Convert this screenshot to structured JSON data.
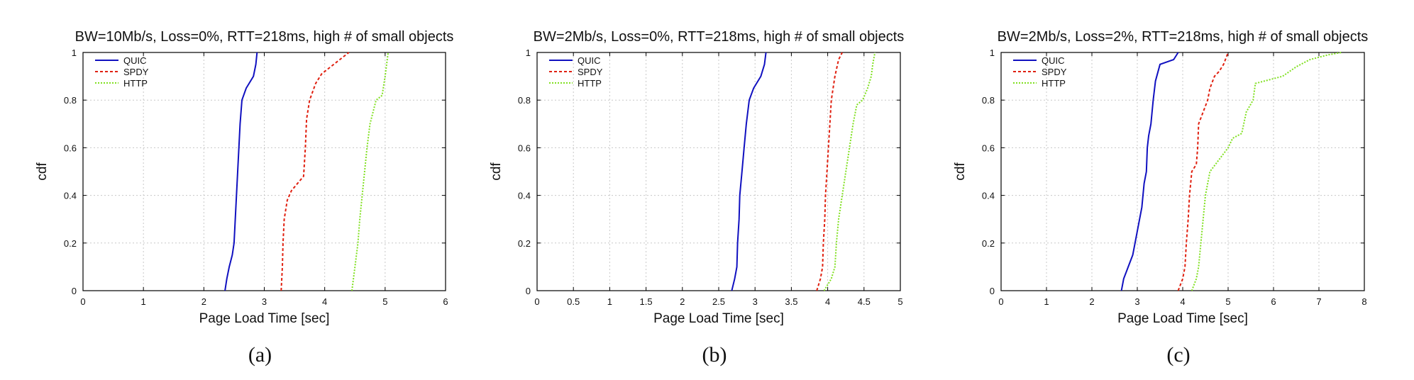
{
  "chart_data": [
    {
      "type": "line",
      "panel_label": "(a)",
      "title": "BW=10Mb/s, Loss=0%, RTT=218ms, high # of small objects",
      "xlabel": "Page Load Time [sec]",
      "ylabel": "cdf",
      "xlim": [
        0,
        6
      ],
      "ylim": [
        0,
        1
      ],
      "xticks": [
        0,
        1,
        2,
        3,
        4,
        5,
        6
      ],
      "yticks": [
        0,
        0.2,
        0.4,
        0.6,
        0.8,
        1
      ],
      "grid": true,
      "legend": "top-left",
      "series": [
        {
          "name": "QUIC",
          "color": "#1010c0",
          "dash": "solid",
          "points": [
            [
              2.35,
              0
            ],
            [
              2.38,
              0.05
            ],
            [
              2.42,
              0.1
            ],
            [
              2.47,
              0.15
            ],
            [
              2.5,
              0.2
            ],
            [
              2.52,
              0.3
            ],
            [
              2.54,
              0.4
            ],
            [
              2.56,
              0.5
            ],
            [
              2.58,
              0.6
            ],
            [
              2.6,
              0.7
            ],
            [
              2.63,
              0.8
            ],
            [
              2.7,
              0.85
            ],
            [
              2.82,
              0.9
            ],
            [
              2.86,
              0.95
            ],
            [
              2.88,
              1
            ]
          ]
        },
        {
          "name": "SPDY",
          "color": "#e02010",
          "dash": "4,3",
          "points": [
            [
              3.28,
              0
            ],
            [
              3.3,
              0.1
            ],
            [
              3.31,
              0.2
            ],
            [
              3.33,
              0.3
            ],
            [
              3.38,
              0.38
            ],
            [
              3.45,
              0.42
            ],
            [
              3.55,
              0.45
            ],
            [
              3.65,
              0.48
            ],
            [
              3.68,
              0.6
            ],
            [
              3.7,
              0.72
            ],
            [
              3.75,
              0.8
            ],
            [
              3.85,
              0.87
            ],
            [
              3.95,
              0.91
            ],
            [
              4.15,
              0.95
            ],
            [
              4.4,
              1
            ]
          ]
        },
        {
          "name": "HTTP",
          "color": "#80e020",
          "dash": "2,2",
          "points": [
            [
              4.45,
              0
            ],
            [
              4.5,
              0.1
            ],
            [
              4.55,
              0.2
            ],
            [
              4.58,
              0.3
            ],
            [
              4.62,
              0.4
            ],
            [
              4.66,
              0.5
            ],
            [
              4.7,
              0.6
            ],
            [
              4.75,
              0.7
            ],
            [
              4.85,
              0.8
            ],
            [
              4.95,
              0.82
            ],
            [
              5,
              0.9
            ],
            [
              5.05,
              1
            ]
          ]
        }
      ]
    },
    {
      "type": "line",
      "panel_label": "(b)",
      "title": "BW=2Mb/s, Loss=0%, RTT=218ms, high # of small objects",
      "xlabel": "Page Load Time [sec]",
      "ylabel": "cdf",
      "xlim": [
        0,
        5
      ],
      "ylim": [
        0,
        1
      ],
      "xticks": [
        0,
        0.5,
        1,
        1.5,
        2,
        2.5,
        3,
        3.5,
        4,
        4.5,
        5
      ],
      "yticks": [
        0,
        0.2,
        0.4,
        0.6,
        0.8,
        1
      ],
      "grid": true,
      "legend": "top-left",
      "series": [
        {
          "name": "QUIC",
          "color": "#1010c0",
          "dash": "solid",
          "points": [
            [
              2.68,
              0
            ],
            [
              2.72,
              0.05
            ],
            [
              2.75,
              0.1
            ],
            [
              2.76,
              0.2
            ],
            [
              2.78,
              0.3
            ],
            [
              2.79,
              0.4
            ],
            [
              2.82,
              0.5
            ],
            [
              2.85,
              0.6
            ],
            [
              2.88,
              0.7
            ],
            [
              2.92,
              0.8
            ],
            [
              2.98,
              0.85
            ],
            [
              3.08,
              0.9
            ],
            [
              3.13,
              0.95
            ],
            [
              3.15,
              1
            ]
          ]
        },
        {
          "name": "SPDY",
          "color": "#e02010",
          "dash": "4,3",
          "points": [
            [
              3.85,
              0
            ],
            [
              3.9,
              0.05
            ],
            [
              3.93,
              0.1
            ],
            [
              3.94,
              0.2
            ],
            [
              3.96,
              0.3
            ],
            [
              3.97,
              0.4
            ],
            [
              3.99,
              0.5
            ],
            [
              4.01,
              0.6
            ],
            [
              4.03,
              0.7
            ],
            [
              4.05,
              0.8
            ],
            [
              4.1,
              0.9
            ],
            [
              4.15,
              0.97
            ],
            [
              4.2,
              1
            ]
          ]
        },
        {
          "name": "HTTP",
          "color": "#80e020",
          "dash": "2,2",
          "points": [
            [
              3.95,
              0
            ],
            [
              4.05,
              0.05
            ],
            [
              4.1,
              0.1
            ],
            [
              4.12,
              0.2
            ],
            [
              4.15,
              0.3
            ],
            [
              4.2,
              0.4
            ],
            [
              4.25,
              0.5
            ],
            [
              4.3,
              0.6
            ],
            [
              4.35,
              0.7
            ],
            [
              4.4,
              0.78
            ],
            [
              4.48,
              0.8
            ],
            [
              4.55,
              0.85
            ],
            [
              4.6,
              0.9
            ],
            [
              4.62,
              0.95
            ],
            [
              4.65,
              1
            ]
          ]
        }
      ]
    },
    {
      "type": "line",
      "panel_label": "(c)",
      "title": "BW=2Mb/s, Loss=2%, RTT=218ms, high # of small objects",
      "xlabel": "Page Load Time [sec]",
      "ylabel": "cdf",
      "xlim": [
        0,
        8
      ],
      "ylim": [
        0,
        1
      ],
      "xticks": [
        0,
        1,
        2,
        3,
        4,
        5,
        6,
        7,
        8
      ],
      "yticks": [
        0,
        0.2,
        0.4,
        0.6,
        0.8,
        1
      ],
      "grid": true,
      "legend": "top-left",
      "series": [
        {
          "name": "QUIC",
          "color": "#1010c0",
          "dash": "solid",
          "points": [
            [
              2.65,
              0
            ],
            [
              2.7,
              0.05
            ],
            [
              2.8,
              0.1
            ],
            [
              2.9,
              0.15
            ],
            [
              2.95,
              0.2
            ],
            [
              3,
              0.25
            ],
            [
              3.05,
              0.3
            ],
            [
              3.1,
              0.35
            ],
            [
              3.15,
              0.45
            ],
            [
              3.2,
              0.5
            ],
            [
              3.22,
              0.6
            ],
            [
              3.25,
              0.65
            ],
            [
              3.3,
              0.7
            ],
            [
              3.35,
              0.8
            ],
            [
              3.4,
              0.88
            ],
            [
              3.5,
              0.95
            ],
            [
              3.8,
              0.97
            ],
            [
              3.9,
              1
            ]
          ]
        },
        {
          "name": "SPDY",
          "color": "#e02010",
          "dash": "4,3",
          "points": [
            [
              3.9,
              0
            ],
            [
              4,
              0.05
            ],
            [
              4.05,
              0.1
            ],
            [
              4.08,
              0.2
            ],
            [
              4.12,
              0.3
            ],
            [
              4.15,
              0.4
            ],
            [
              4.2,
              0.5
            ],
            [
              4.3,
              0.53
            ],
            [
              4.33,
              0.6
            ],
            [
              4.35,
              0.7
            ],
            [
              4.45,
              0.75
            ],
            [
              4.55,
              0.8
            ],
            [
              4.6,
              0.85
            ],
            [
              4.7,
              0.9
            ],
            [
              4.8,
              0.92
            ],
            [
              4.9,
              0.95
            ],
            [
              5,
              1
            ]
          ]
        },
        {
          "name": "HTTP",
          "color": "#80e020",
          "dash": "2,2",
          "points": [
            [
              4.2,
              0
            ],
            [
              4.3,
              0.05
            ],
            [
              4.35,
              0.1
            ],
            [
              4.4,
              0.2
            ],
            [
              4.45,
              0.3
            ],
            [
              4.5,
              0.4
            ],
            [
              4.6,
              0.5
            ],
            [
              4.8,
              0.55
            ],
            [
              5,
              0.6
            ],
            [
              5.1,
              0.64
            ],
            [
              5.3,
              0.66
            ],
            [
              5.4,
              0.75
            ],
            [
              5.55,
              0.8
            ],
            [
              5.6,
              0.87
            ],
            [
              5.8,
              0.88
            ],
            [
              6.2,
              0.9
            ],
            [
              6.5,
              0.94
            ],
            [
              6.8,
              0.97
            ],
            [
              7.2,
              0.99
            ],
            [
              7.5,
              1
            ]
          ]
        }
      ]
    }
  ]
}
